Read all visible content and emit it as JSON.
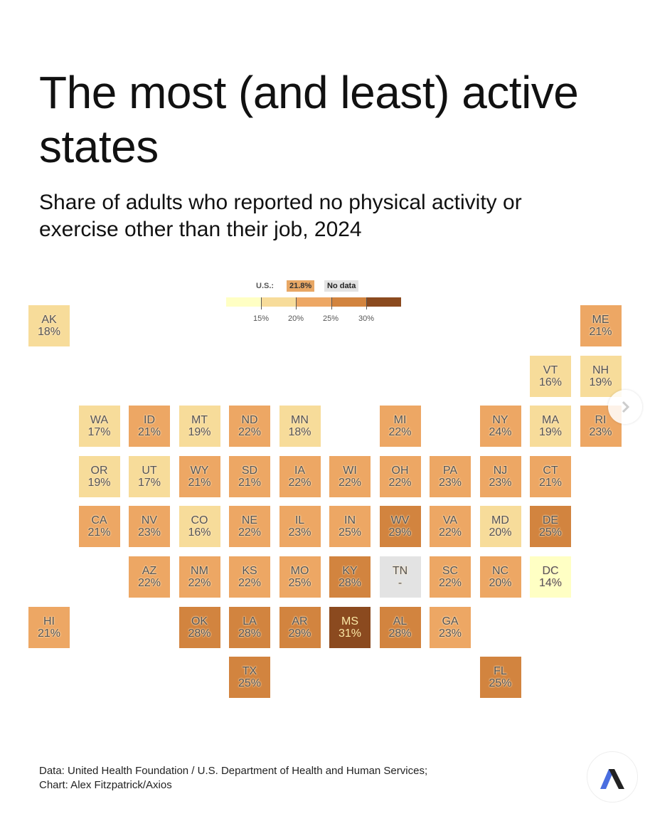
{
  "title": "The most (and least) active states",
  "subtitle": "Share of adults who reported no physical activity or exercise other than their job, 2024",
  "source": "Data: United Health Foundation / U.S. Department of Health and Human Services;",
  "credit": "Chart: Alex Fitzpatrick/Axios",
  "icons": {
    "next": "chevron-right-icon",
    "logo": "axios-logo"
  },
  "chart_data": {
    "type": "heatmap",
    "subtype": "tile-grid map",
    "legend": {
      "us_label": "U.S.:",
      "us_value": "21.8%",
      "no_data_label": "No data",
      "no_data_color": "#e3e3e3",
      "ticks": [
        "15%",
        "20%",
        "25%",
        "30%"
      ],
      "bins": [
        "<15%",
        "15–20%",
        "20–25%",
        "25–30%",
        "≥30%"
      ],
      "colors": [
        "#ffffc4",
        "#f7dc9a",
        "#eda764",
        "#d2843f",
        "#8b4a1f"
      ]
    },
    "tiles": [
      {
        "state": "AK",
        "label": "18%",
        "value": 18,
        "bin": 1
      },
      {
        "state": "ME",
        "label": "21%",
        "value": 21,
        "bin": 2
      },
      {
        "state": "VT",
        "label": "16%",
        "value": 16,
        "bin": 1
      },
      {
        "state": "NH",
        "label": "19%",
        "value": 19,
        "bin": 1
      },
      {
        "state": "WA",
        "label": "17%",
        "value": 17,
        "bin": 1
      },
      {
        "state": "ID",
        "label": "21%",
        "value": 21,
        "bin": 2
      },
      {
        "state": "MT",
        "label": "19%",
        "value": 19,
        "bin": 1
      },
      {
        "state": "ND",
        "label": "22%",
        "value": 22,
        "bin": 2
      },
      {
        "state": "MN",
        "label": "18%",
        "value": 18,
        "bin": 1
      },
      {
        "state": "MI",
        "label": "22%",
        "value": 22,
        "bin": 2
      },
      {
        "state": "NY",
        "label": "24%",
        "value": 24,
        "bin": 2
      },
      {
        "state": "MA",
        "label": "19%",
        "value": 19,
        "bin": 1
      },
      {
        "state": "RI",
        "label": "23%",
        "value": 23,
        "bin": 2
      },
      {
        "state": "OR",
        "label": "19%",
        "value": 19,
        "bin": 1
      },
      {
        "state": "UT",
        "label": "17%",
        "value": 17,
        "bin": 1
      },
      {
        "state": "WY",
        "label": "21%",
        "value": 21,
        "bin": 2
      },
      {
        "state": "SD",
        "label": "21%",
        "value": 21,
        "bin": 2
      },
      {
        "state": "IA",
        "label": "22%",
        "value": 22,
        "bin": 2
      },
      {
        "state": "WI",
        "label": "22%",
        "value": 22,
        "bin": 2
      },
      {
        "state": "OH",
        "label": "22%",
        "value": 22,
        "bin": 2
      },
      {
        "state": "PA",
        "label": "23%",
        "value": 23,
        "bin": 2
      },
      {
        "state": "NJ",
        "label": "23%",
        "value": 23,
        "bin": 2
      },
      {
        "state": "CT",
        "label": "21%",
        "value": 21,
        "bin": 2
      },
      {
        "state": "CA",
        "label": "21%",
        "value": 21,
        "bin": 2
      },
      {
        "state": "NV",
        "label": "23%",
        "value": 23,
        "bin": 2
      },
      {
        "state": "CO",
        "label": "16%",
        "value": 16,
        "bin": 1
      },
      {
        "state": "NE",
        "label": "22%",
        "value": 22,
        "bin": 2
      },
      {
        "state": "IL",
        "label": "23%",
        "value": 23,
        "bin": 2
      },
      {
        "state": "IN",
        "label": "25%",
        "value": 25,
        "bin": 2
      },
      {
        "state": "WV",
        "label": "29%",
        "value": 29,
        "bin": 3
      },
      {
        "state": "VA",
        "label": "22%",
        "value": 22,
        "bin": 2
      },
      {
        "state": "MD",
        "label": "20%",
        "value": 20,
        "bin": 1
      },
      {
        "state": "DE",
        "label": "25%",
        "value": 25,
        "bin": 3
      },
      {
        "state": "AZ",
        "label": "22%",
        "value": 22,
        "bin": 2
      },
      {
        "state": "NM",
        "label": "22%",
        "value": 22,
        "bin": 2
      },
      {
        "state": "KS",
        "label": "22%",
        "value": 22,
        "bin": 2
      },
      {
        "state": "MO",
        "label": "25%",
        "value": 25,
        "bin": 2
      },
      {
        "state": "KY",
        "label": "28%",
        "value": 28,
        "bin": 3
      },
      {
        "state": "TN",
        "label": "-",
        "value": null,
        "bin": null
      },
      {
        "state": "SC",
        "label": "22%",
        "value": 22,
        "bin": 2
      },
      {
        "state": "NC",
        "label": "20%",
        "value": 20,
        "bin": 2
      },
      {
        "state": "DC",
        "label": "14%",
        "value": 14,
        "bin": 0
      },
      {
        "state": "HI",
        "label": "21%",
        "value": 21,
        "bin": 2
      },
      {
        "state": "OK",
        "label": "28%",
        "value": 28,
        "bin": 3
      },
      {
        "state": "LA",
        "label": "28%",
        "value": 28,
        "bin": 3
      },
      {
        "state": "AR",
        "label": "29%",
        "value": 29,
        "bin": 3
      },
      {
        "state": "MS",
        "label": "31%",
        "value": 31,
        "bin": 4
      },
      {
        "state": "AL",
        "label": "28%",
        "value": 28,
        "bin": 3
      },
      {
        "state": "GA",
        "label": "23%",
        "value": 23,
        "bin": 2
      },
      {
        "state": "TX",
        "label": "25%",
        "value": 25,
        "bin": 3
      },
      {
        "state": "FL",
        "label": "25%",
        "value": 25,
        "bin": 3
      }
    ]
  }
}
